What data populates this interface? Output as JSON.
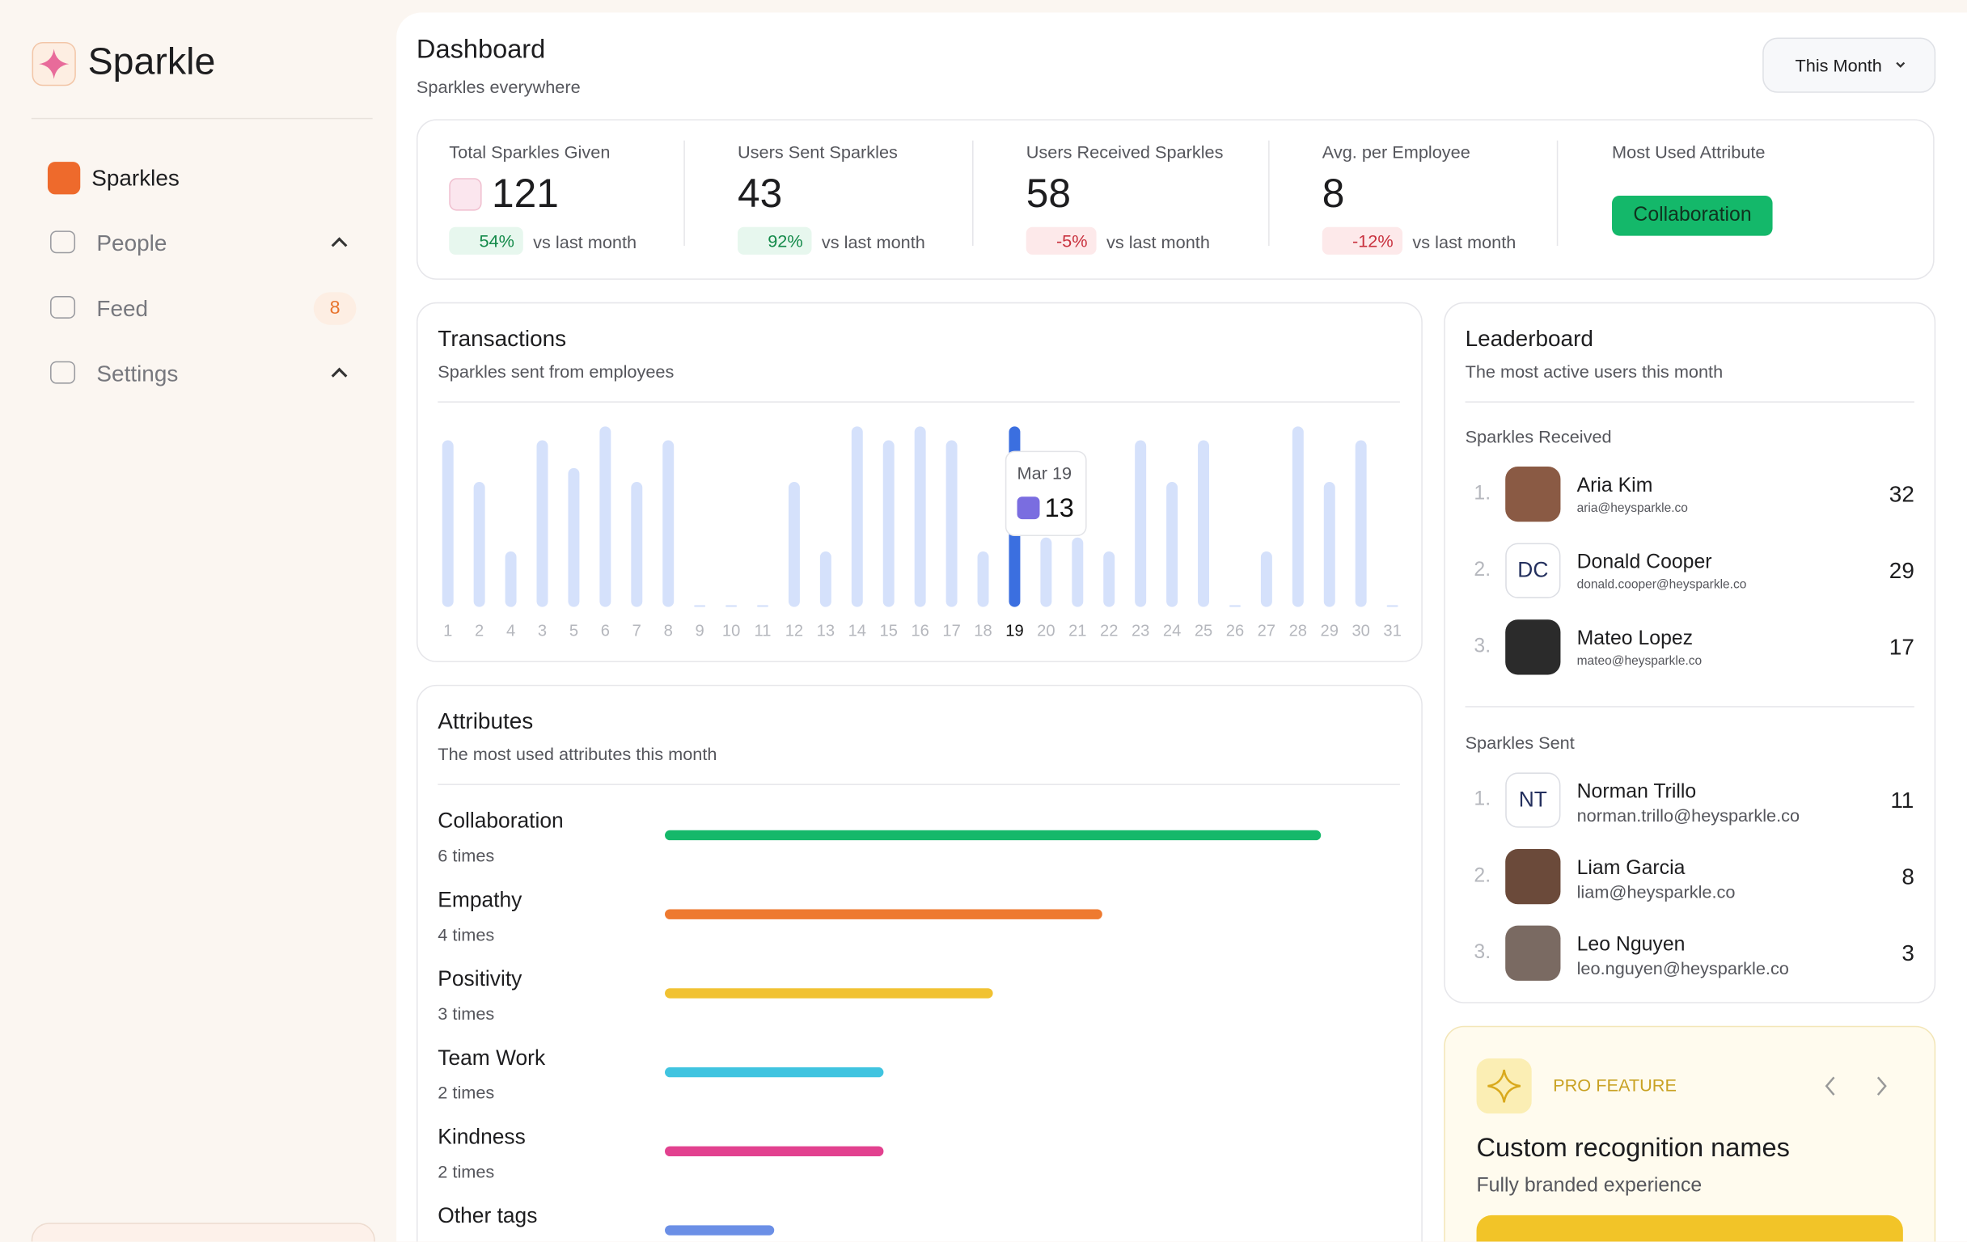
{
  "sidebar": {
    "brand": "Sparkle",
    "nav": [
      {
        "label": "Sparkles"
      },
      {
        "label": "People"
      },
      {
        "label": "Feed",
        "badge": "8"
      },
      {
        "label": "Settings"
      }
    ]
  },
  "header": {
    "title": "Dashboard",
    "subtitle": "Sparkles everywhere",
    "period": "This Month"
  },
  "stats": [
    {
      "label": "Total Sparkles Given",
      "value": "121",
      "change": "54%",
      "compare": "vs last month"
    },
    {
      "label": "Users Sent Sparkles",
      "value": "43",
      "change": "92%",
      "compare": "vs last month"
    },
    {
      "label": "Users Received Sparkles",
      "value": "58",
      "change": "-5%",
      "compare": "vs last month"
    },
    {
      "label": "Avg. per Employee",
      "value": "8",
      "change": "-12%",
      "compare": "vs last month"
    }
  ],
  "most_used": {
    "label": "Most Used Attribute",
    "value": "Collaboration"
  },
  "chart_data": [
    {
      "type": "bar",
      "title": "Transactions",
      "subtitle": "Sparkles sent from employees",
      "categories": [
        "1",
        "2",
        "4",
        "3",
        "5",
        "6",
        "7",
        "8",
        "9",
        "10",
        "11",
        "12",
        "13",
        "14",
        "15",
        "16",
        "17",
        "18",
        "19",
        "20",
        "21",
        "22",
        "23",
        "24",
        "25",
        "26",
        "27",
        "28",
        "29",
        "30",
        "31"
      ],
      "values": [
        12,
        9,
        4,
        12,
        10,
        13,
        9,
        12,
        0,
        0,
        0,
        9,
        4,
        13,
        12,
        13,
        12,
        4,
        13,
        5,
        5,
        4,
        12,
        9,
        12,
        0,
        4,
        13,
        9,
        12,
        0
      ],
      "ylim": [
        0,
        13
      ],
      "color": "#d5e1fb",
      "highlight_color": "#3b6fe0",
      "tooltip": {
        "label": "Mar 19"
      }
    },
    {
      "type": "hbar",
      "title": "Attributes",
      "subtitle": "The most used attributes this month",
      "categories": [
        "Collaboration",
        "Empathy",
        "Positivity",
        "Team Work",
        "Kindness",
        "Other tags"
      ],
      "values": [
        6,
        4,
        3,
        2,
        2,
        1
      ],
      "value_labels": [
        "6 times",
        "4 times",
        "3 times",
        "2 times",
        "2 times",
        null
      ],
      "xlim": [
        0,
        6
      ],
      "colors": [
        "#15b86a",
        "#ee7a30",
        "#f1c232",
        "#40c4e0",
        "#e2418f",
        "#6b8fe6"
      ]
    }
  ],
  "leaderboard": {
    "title": "Leaderboard",
    "subtitle": "The most active users this month",
    "received": {
      "title": "Sparkles Received",
      "rows": [
        {
          "rank": "1.",
          "name": "Aria Kim",
          "email": "aria@heysparkle.co",
          "count": "32"
        },
        {
          "rank": "2.",
          "initials": "DC",
          "name": "Donald Cooper",
          "email": "donald.cooper@heysparkle.co",
          "count": "29"
        },
        {
          "rank": "3.",
          "name": "Mateo Lopez",
          "email": "mateo@heysparkle.co",
          "count": "17"
        }
      ]
    },
    "sent": {
      "title": "Sparkles Sent",
      "rows": [
        {
          "rank": "1.",
          "initials": "NT",
          "name": "Norman Trillo",
          "email": "norman.trillo@heysparkle.co",
          "count": "11"
        },
        {
          "rank": "2.",
          "name": "Liam Garcia",
          "email": "liam@heysparkle.co",
          "count": "8"
        },
        {
          "rank": "3.",
          "name": "Leo Nguyen",
          "email": "leo.nguyen@heysparkle.co",
          "count": "3"
        }
      ]
    }
  },
  "pro": {
    "tag": "PRO FEATURE",
    "title": "Custom recognition names",
    "subtitle": "Fully branded experience"
  }
}
